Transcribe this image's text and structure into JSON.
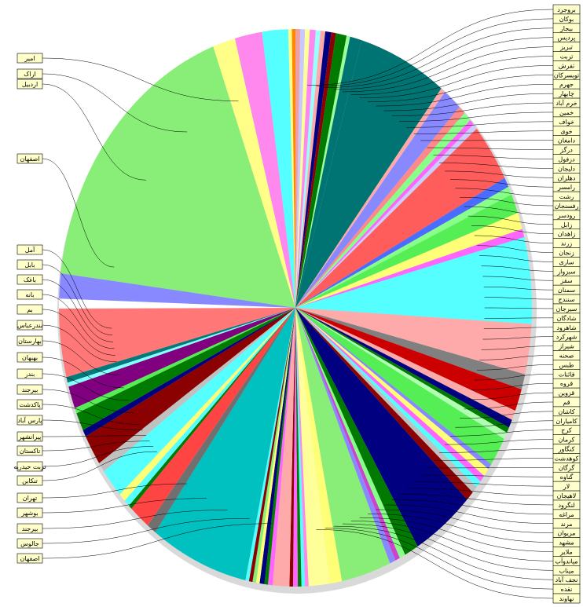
{
  "chart_data": {
    "type": "pie",
    "title": "",
    "slices": [
      {
        "label": "",
        "value": 0.4,
        "color": "#f0a0a0"
      },
      {
        "label": "",
        "value": 0.4,
        "color": "#c8c8ff"
      },
      {
        "label": "",
        "value": 0.4,
        "color": "#ffff99"
      },
      {
        "label": "",
        "value": 0.5,
        "color": "#ff88ee"
      },
      {
        "label": "",
        "value": 0.4,
        "color": "#99ffff"
      },
      {
        "label": "",
        "value": 0.4,
        "color": "#ffaaaa"
      },
      {
        "label": "",
        "value": 0.5,
        "color": "#000080"
      },
      {
        "label": "",
        "value": 0.4,
        "color": "#8b0000"
      },
      {
        "label": "",
        "value": 0.9,
        "color": "#007a00"
      },
      {
        "label": "",
        "value": 0.3,
        "color": "#99ff99"
      },
      {
        "label": "",
        "value": 1.0,
        "color": "#007373"
      },
      {
        "label": "",
        "value": 7.5,
        "color": "#007373"
      },
      {
        "label": "",
        "value": 0.4,
        "color": "#ffaaaa"
      },
      {
        "label": "",
        "value": 1.6,
        "color": "#8888ff"
      },
      {
        "label": "",
        "value": 0.6,
        "color": "#ff8888"
      },
      {
        "label": "",
        "value": 0.7,
        "color": "#88ff88"
      },
      {
        "label": "",
        "value": 0.4,
        "color": "#ff66ff"
      },
      {
        "label": "",
        "value": 0.4,
        "color": "#ccccff"
      },
      {
        "label": "",
        "value": 4.2,
        "color": "#ff5c5c"
      },
      {
        "label": "",
        "value": 0.7,
        "color": "#4a6cff"
      },
      {
        "label": "",
        "value": 0.6,
        "color": "#88ff88"
      },
      {
        "label": "",
        "value": 1.4,
        "color": "#55ee55"
      },
      {
        "label": "",
        "value": 1.2,
        "color": "#ffff77"
      },
      {
        "label": "",
        "value": 0.6,
        "color": "#ff66ff"
      },
      {
        "label": "",
        "value": 6.2,
        "color": "#55ffff"
      },
      {
        "label": "",
        "value": 3.6,
        "color": "#ffaaaa"
      },
      {
        "label": "",
        "value": 1.1,
        "color": "#808080"
      },
      {
        "label": "",
        "value": 1.6,
        "color": "#cc0000"
      },
      {
        "label": "",
        "value": 0.7,
        "color": "#ffaaaa"
      },
      {
        "label": "",
        "value": 0.6,
        "color": "#000080"
      },
      {
        "label": "",
        "value": 0.4,
        "color": "#007a00"
      },
      {
        "label": "",
        "value": 0.5,
        "color": "#b0ffb0"
      },
      {
        "label": "",
        "value": 2.1,
        "color": "#55ee55"
      },
      {
        "label": "",
        "value": 0.4,
        "color": "#8888ff"
      },
      {
        "label": "",
        "value": 0.6,
        "color": "#ffff77"
      },
      {
        "label": "",
        "value": 0.5,
        "color": "#ff66ff"
      },
      {
        "label": "",
        "value": 0.5,
        "color": "#55ffff"
      },
      {
        "label": "",
        "value": 0.5,
        "color": "#c0c0c0"
      },
      {
        "label": "",
        "value": 0.7,
        "color": "#8b0000"
      },
      {
        "label": "",
        "value": 5.3,
        "color": "#000080"
      },
      {
        "label": "",
        "value": 1.2,
        "color": "#007a00"
      },
      {
        "label": "",
        "value": 0.5,
        "color": "#88ff88"
      },
      {
        "label": "",
        "value": 0.4,
        "color": "#cc44cc"
      },
      {
        "label": "",
        "value": 0.5,
        "color": "#8888ff"
      },
      {
        "label": "",
        "value": 4.2,
        "color": "#88ee77"
      },
      {
        "label": "",
        "value": 1.0,
        "color": "#ffff77"
      },
      {
        "label": "",
        "value": 1.8,
        "color": "#ffff99"
      },
      {
        "label": "",
        "value": 0.3,
        "color": "#ff88ee"
      },
      {
        "label": "",
        "value": 0.3,
        "color": "#55ffff"
      },
      {
        "label": "",
        "value": 0.3,
        "color": "#007a00"
      },
      {
        "label": "",
        "value": 0.4,
        "color": "#ff66ff"
      },
      {
        "label": "",
        "value": 0.3,
        "color": "#8b0000"
      },
      {
        "label": "",
        "value": 1.4,
        "color": "#ffaaaa"
      },
      {
        "label": "",
        "value": 0.4,
        "color": "#ff66ff"
      },
      {
        "label": "",
        "value": 0.3,
        "color": "#007a00"
      },
      {
        "label": "",
        "value": 0.4,
        "color": "#000080"
      },
      {
        "label": "",
        "value": 0.3,
        "color": "#ffff77"
      },
      {
        "label": "",
        "value": 0.3,
        "color": "#88ee77"
      },
      {
        "label": "",
        "value": 0.3,
        "color": "#8b0000"
      },
      {
        "label": "",
        "value": 0.3,
        "color": "#55ffff"
      },
      {
        "label": "",
        "value": 8.3,
        "color": "#00c0c0"
      },
      {
        "label": "",
        "value": 0.8,
        "color": "#707070"
      },
      {
        "label": "",
        "value": 1.8,
        "color": "#ff4444"
      },
      {
        "label": "",
        "value": 0.3,
        "color": "#007a00"
      },
      {
        "label": "",
        "value": 0.5,
        "color": "#55ffff"
      },
      {
        "label": "",
        "value": 0.6,
        "color": "#ffff77"
      },
      {
        "label": "",
        "value": 2.1,
        "color": "#55ffff"
      },
      {
        "label": "",
        "value": 0.7,
        "color": "#c0c0c0"
      },
      {
        "label": "",
        "value": 2.2,
        "color": "#8b0000"
      },
      {
        "label": "",
        "value": 0.5,
        "color": "#000080"
      },
      {
        "label": "",
        "value": 1.3,
        "color": "#007a00"
      },
      {
        "label": "",
        "value": 0.4,
        "color": "#55ee55"
      },
      {
        "label": "",
        "value": 1.6,
        "color": "#800080"
      },
      {
        "label": "",
        "value": 0.3,
        "color": "#88ffff"
      },
      {
        "label": "",
        "value": 0.4,
        "color": "#007a7a"
      },
      {
        "label": "",
        "value": 4.9,
        "color": "#ff7777"
      },
      {
        "label": "",
        "value": 0.7,
        "color": "#ffffff"
      },
      {
        "label": "",
        "value": 1.8,
        "color": "#8888ff"
      },
      {
        "label": "",
        "value": 21.5,
        "color": "#88ee77"
      },
      {
        "label": "",
        "value": 1.9,
        "color": "#ffff88"
      },
      {
        "label": "",
        "value": 2.3,
        "color": "#ff88ee"
      },
      {
        "label": "",
        "value": 2.2,
        "color": "#55ffff"
      },
      {
        "label": "",
        "value": 0.3,
        "color": "#ffff88"
      },
      {
        "label": "",
        "value": 0.3,
        "color": "#ff8800"
      }
    ],
    "left_labels": [
      "امیر",
      "اراک",
      "اردبیل",
      "اصفهان",
      "آمل",
      "بابل",
      "باغک",
      "بانه",
      "بم",
      "بندرعباس",
      "بهارستان",
      "بهبهان",
      "بندر",
      "بیرجند",
      "پاکدشت",
      "پارس آباد",
      "پیرانشهر",
      "تاکستان",
      "تربت حیدریه",
      "تنکابن",
      "تهران",
      "بوشهر",
      "بیرجند",
      "جالوس",
      "اصفهان"
    ],
    "right_labels": [
      "بروجرد",
      "بوکان",
      "بیجار",
      "پردیس",
      "تبریز",
      "تربت",
      "تفرش",
      "تویسرکان",
      "جهرم",
      "چابهار",
      "خرم آباد",
      "خمین",
      "خواف",
      "خوی",
      "دامغان",
      "درگز",
      "دزفول",
      "دلیجان",
      "دهلران",
      "رامسر",
      "رشت",
      "رفسنجان",
      "رودسر",
      "زابل",
      "زاهدان",
      "زرند",
      "زنجان",
      "ساری",
      "سبزوار",
      "سقز",
      "سمنان",
      "سنندج",
      "سیرجان",
      "شادگان",
      "شاهرود",
      "شهرکرد",
      "شیراز",
      "صحنه",
      "طبس",
      "قائنات",
      "قروه",
      "قزوین",
      "قم",
      "کاشان",
      "کامیاران",
      "کرج",
      "کرمان",
      "کنگاور",
      "کوهدشت",
      "گرگان",
      "گناوه",
      "لار",
      "لاهیجان",
      "لنگرود",
      "مراغه",
      "مرند",
      "مریوان",
      "مشهد",
      "ملایر",
      "میاندوآب",
      "میناب",
      "نجف آباد",
      "نقده",
      "نهاوند"
    ]
  }
}
